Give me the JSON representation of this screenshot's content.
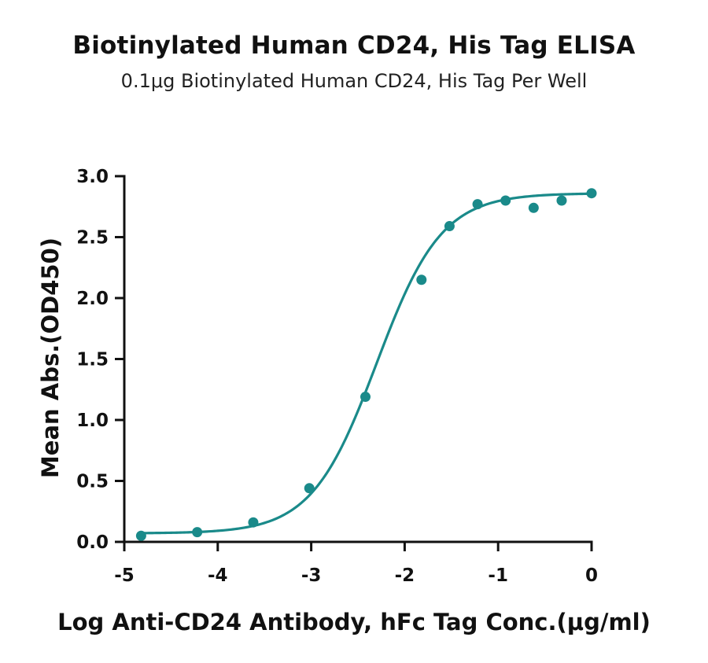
{
  "chart_data": {
    "type": "scatter",
    "title": "Biotinylated Human CD24, His Tag ELISA",
    "subtitle": "0.1μg Biotinylated Human CD24, His Tag Per Well",
    "xlabel": "Log  Anti-CD24 Antibody, hFc Tag Conc.(μg/ml)",
    "ylabel": "Mean Abs.(OD450)",
    "xlim": [
      -5,
      0
    ],
    "ylim": [
      0,
      3.0
    ],
    "x_ticks": [
      "-5",
      "-4",
      "-3",
      "-2",
      "-1",
      "0"
    ],
    "y_ticks": [
      "0.0",
      "0.5",
      "1.0",
      "1.5",
      "2.0",
      "2.5",
      "3.0"
    ],
    "grid": false,
    "color": "#1a8a8a",
    "series": [
      {
        "x": [
          -4.82,
          -4.22,
          -3.62,
          -3.02,
          -2.42,
          -1.82,
          -1.52,
          -1.22,
          -0.92,
          -0.62,
          -0.32,
          0.0
        ],
        "y": [
          0.05,
          0.08,
          0.16,
          0.44,
          1.19,
          2.15,
          2.59,
          2.77,
          2.8,
          2.74,
          2.8,
          2.86
        ]
      }
    ],
    "fit": {
      "model": "4PL",
      "bottom": 0.07,
      "top": 2.86,
      "log_ec50": -2.3,
      "hill_slope": 1.25
    }
  }
}
